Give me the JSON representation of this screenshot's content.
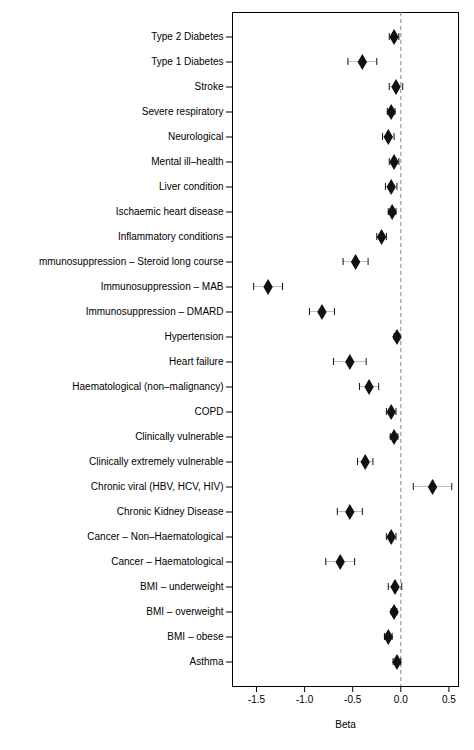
{
  "chart_data": {
    "type": "forest",
    "orientation": "horizontal",
    "xlabel": "Beta",
    "categories": [
      "Type 2 Diabetes",
      "Type 1 Diabetes",
      "Stroke",
      "Severe respiratory",
      "Neurological",
      "Mental ill–health",
      "Liver condition",
      "Ischaemic heart disease",
      "Inflammatory conditions",
      "mmunosuppression – Steroid long course",
      "Immunosuppression – MAB",
      "Immunosuppression – DMARD",
      "Hypertension",
      "Heart failure",
      "Haematological (non–malignancy)",
      "COPD",
      "Clinically vulnerable",
      "Clinically extremely vulnerable",
      "Chronic viral (HBV, HCV, HIV)",
      "Chronic Kidney Disease",
      "Cancer – Non–Haematological",
      "Cancer – Haematological",
      "BMI – underweight",
      "BMI – overweight",
      "BMI – obese",
      "Asthma"
    ],
    "values": [
      -0.07,
      -0.4,
      -0.05,
      -0.1,
      -0.13,
      -0.07,
      -0.1,
      -0.09,
      -0.2,
      -0.47,
      -1.38,
      -0.82,
      -0.04,
      -0.53,
      -0.33,
      -0.1,
      -0.07,
      -0.37,
      0.33,
      -0.53,
      -0.1,
      -0.63,
      -0.06,
      -0.07,
      -0.13,
      -0.04
    ],
    "ci_lower": [
      -0.12,
      -0.55,
      -0.12,
      -0.14,
      -0.19,
      -0.12,
      -0.16,
      -0.13,
      -0.25,
      -0.6,
      -1.53,
      -0.95,
      -0.07,
      -0.7,
      -0.43,
      -0.15,
      -0.11,
      -0.45,
      0.13,
      -0.66,
      -0.15,
      -0.78,
      -0.13,
      -0.1,
      -0.17,
      -0.08
    ],
    "ci_upper": [
      -0.02,
      -0.25,
      0.02,
      -0.06,
      -0.07,
      -0.02,
      -0.04,
      -0.05,
      -0.15,
      -0.34,
      -1.23,
      -0.69,
      -0.01,
      -0.36,
      -0.23,
      -0.05,
      -0.03,
      -0.29,
      0.53,
      -0.4,
      -0.05,
      -0.48,
      0.01,
      -0.04,
      -0.09,
      -0.0
    ],
    "xlim": [
      -1.75,
      0.6
    ],
    "xticks": [
      -1.5,
      {
        "value": -1.0,
        "label": "-1.0"
      },
      -0.5,
      {
        "value": 0.0,
        "label": "0.0"
      },
      0.5
    ],
    "reference_line": 0.0,
    "color": "#111111",
    "marker": "diamond",
    "grid": false
  }
}
